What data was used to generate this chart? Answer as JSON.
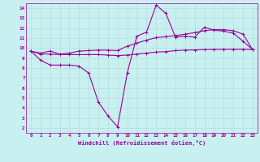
{
  "xlabel": "Windchill (Refroidissement éolien,°C)",
  "background_color": "#c8f0f0",
  "grid_color": "#b8e0e0",
  "line_color": "#990099",
  "spine_color": "#aa44aa",
  "xlim": [
    -0.5,
    23.5
  ],
  "ylim": [
    1.5,
    14.5
  ],
  "xticks": [
    0,
    1,
    2,
    3,
    4,
    5,
    6,
    7,
    8,
    9,
    10,
    11,
    12,
    13,
    14,
    15,
    16,
    17,
    18,
    19,
    20,
    21,
    22,
    23
  ],
  "yticks": [
    2,
    3,
    4,
    5,
    6,
    7,
    8,
    9,
    10,
    11,
    12,
    13,
    14
  ],
  "line1_x": [
    0,
    1,
    2,
    3,
    4,
    5,
    6,
    7,
    8,
    9,
    10,
    11,
    12,
    13,
    14,
    15,
    16,
    17,
    18,
    19,
    20,
    21,
    22,
    23
  ],
  "line1_y": [
    9.7,
    8.8,
    8.3,
    8.3,
    8.3,
    8.2,
    7.5,
    4.6,
    3.2,
    2.1,
    7.5,
    11.2,
    11.6,
    14.3,
    13.5,
    11.1,
    11.2,
    11.1,
    12.1,
    11.8,
    11.7,
    11.5,
    10.7,
    9.85
  ],
  "line2_x": [
    0,
    1,
    2,
    3,
    4,
    5,
    6,
    7,
    8,
    9,
    10,
    11,
    12,
    13,
    14,
    15,
    16,
    17,
    18,
    19,
    20,
    21,
    22,
    23
  ],
  "line2_y": [
    9.7,
    9.5,
    9.7,
    9.4,
    9.5,
    9.7,
    9.75,
    9.8,
    9.8,
    9.75,
    10.2,
    10.5,
    10.8,
    11.05,
    11.15,
    11.25,
    11.4,
    11.55,
    11.75,
    11.85,
    11.85,
    11.75,
    11.4,
    9.85
  ],
  "line3_x": [
    0,
    1,
    2,
    3,
    4,
    5,
    6,
    7,
    8,
    9,
    10,
    11,
    12,
    13,
    14,
    15,
    16,
    17,
    18,
    19,
    20,
    21,
    22,
    23
  ],
  "line3_y": [
    9.7,
    9.4,
    9.4,
    9.35,
    9.35,
    9.35,
    9.35,
    9.35,
    9.3,
    9.25,
    9.3,
    9.4,
    9.5,
    9.6,
    9.65,
    9.75,
    9.8,
    9.82,
    9.85,
    9.87,
    9.88,
    9.88,
    9.88,
    9.85
  ]
}
